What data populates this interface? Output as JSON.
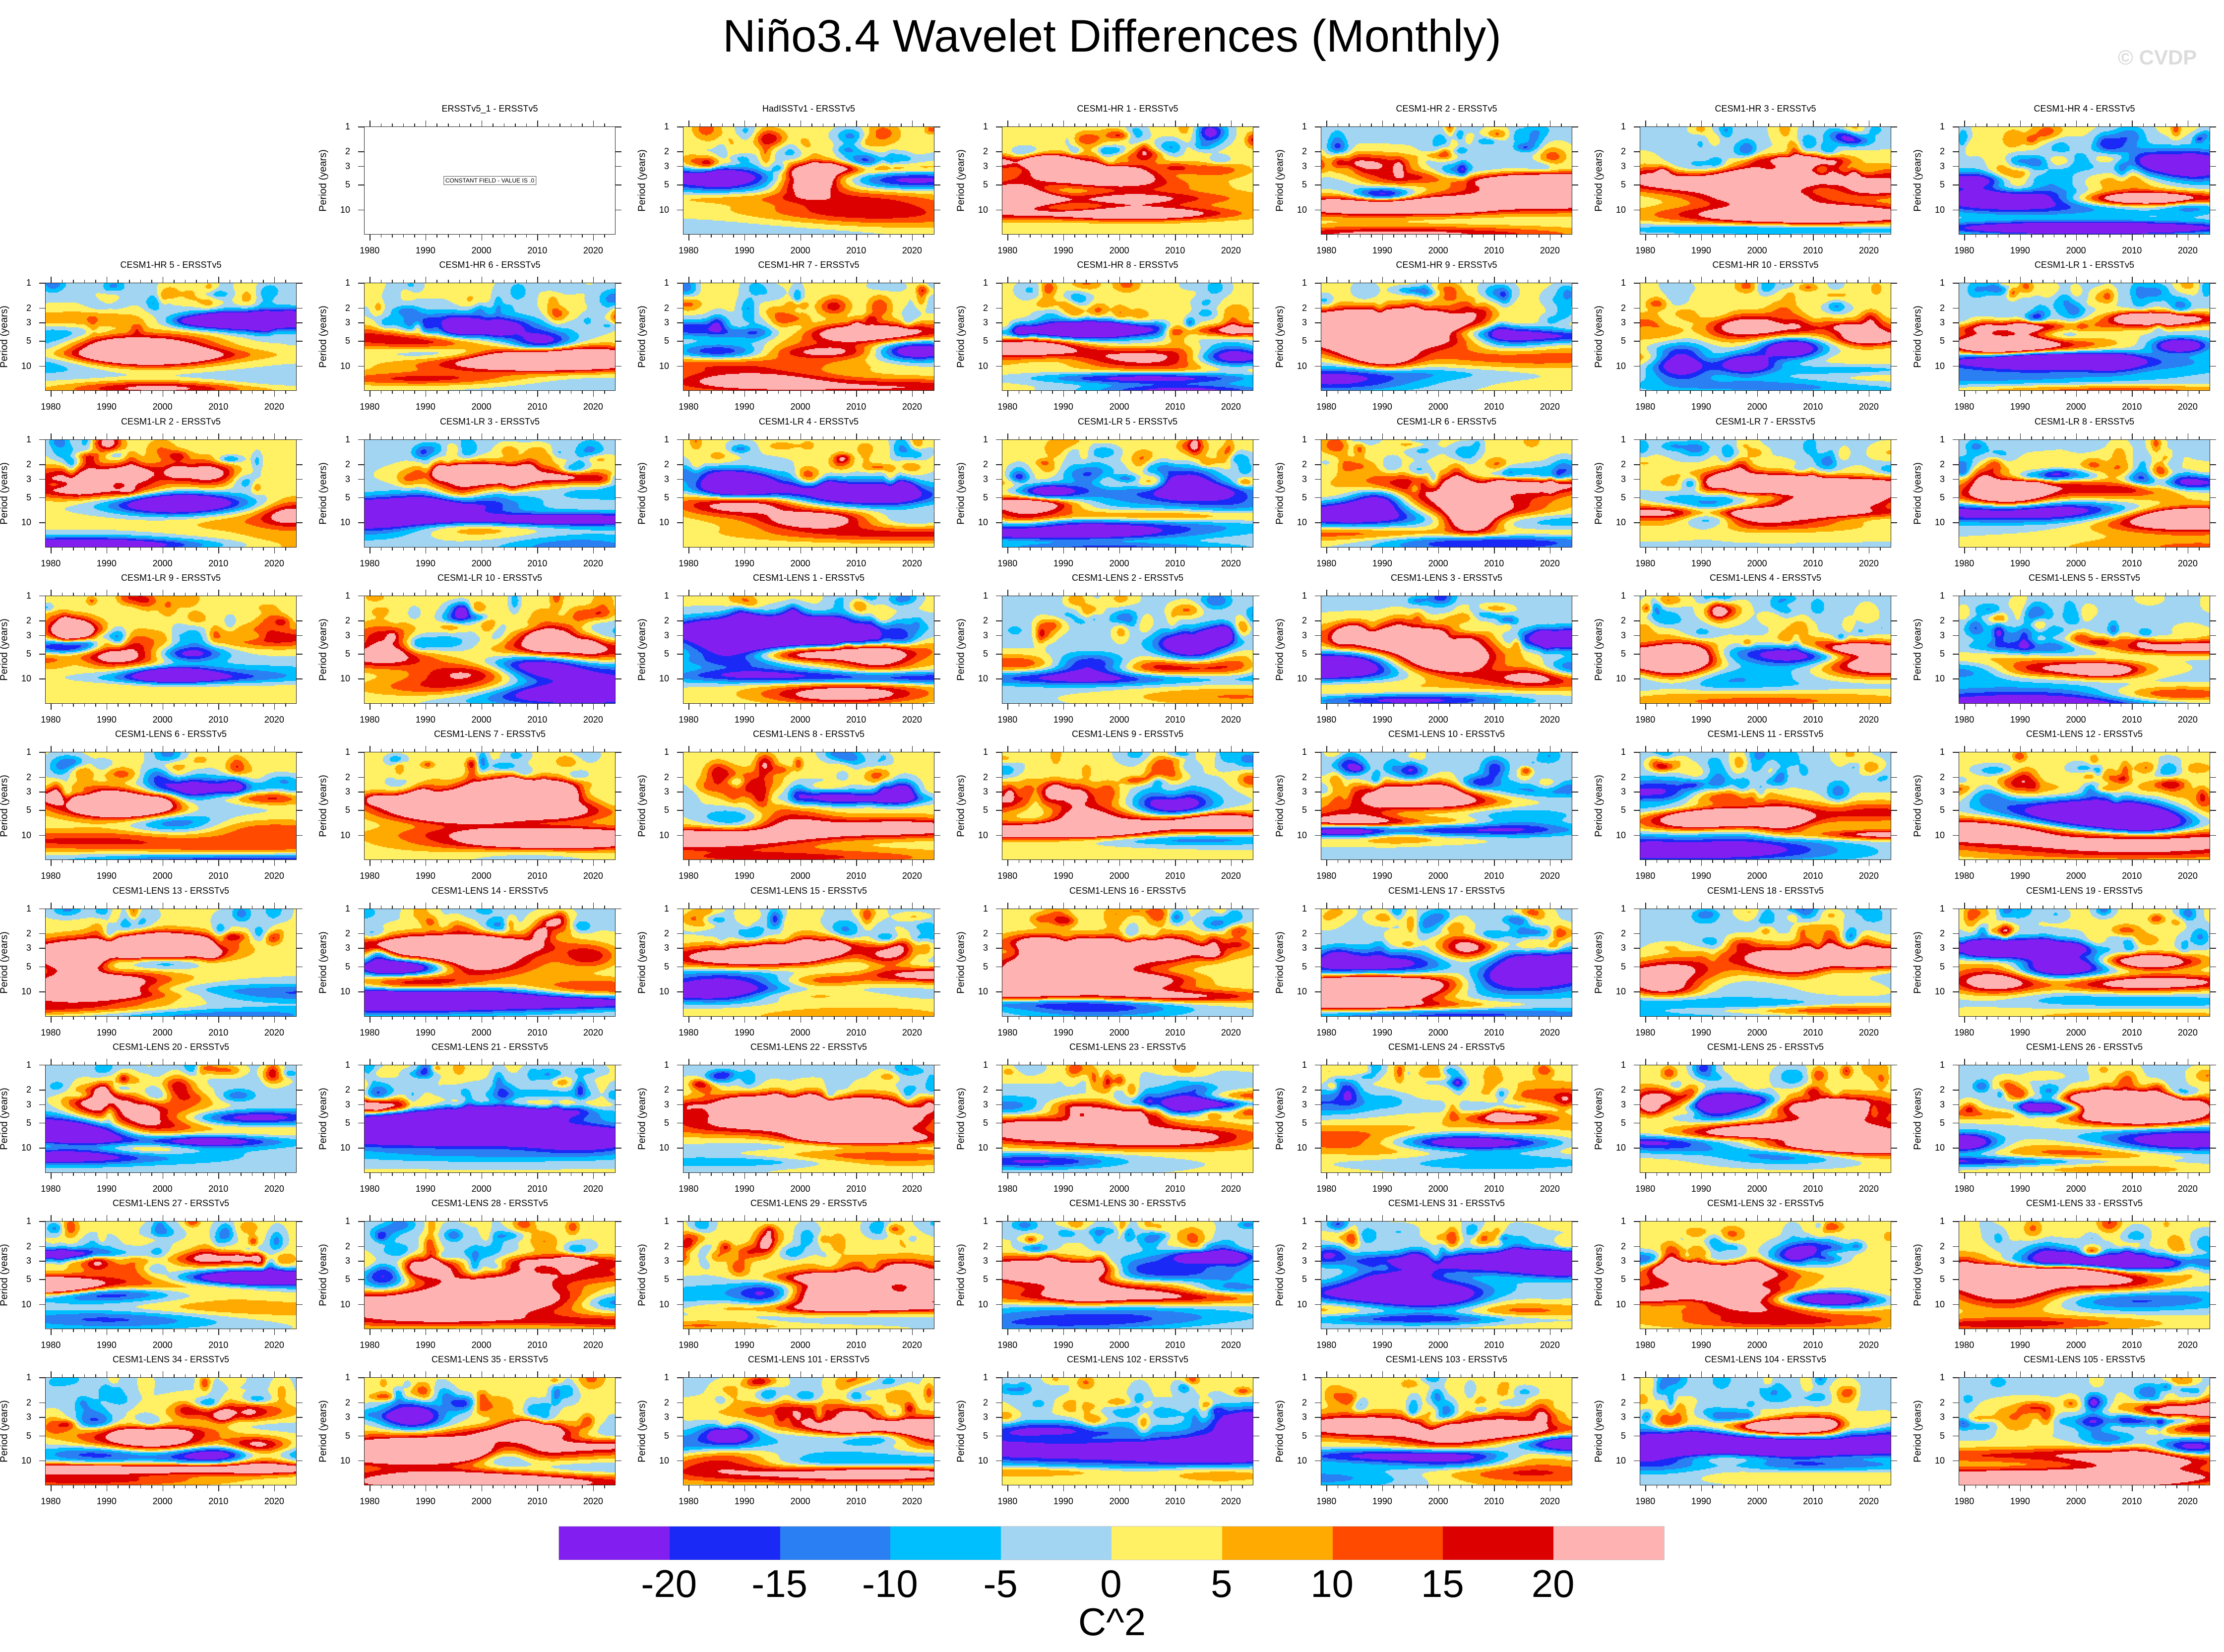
{
  "chart_data": {
    "type": "heatmap",
    "title": "Niño3.4 Wavelet Differences (Monthly)",
    "xlabel": "",
    "ylabel": "Period (years)",
    "xlim": [
      1979,
      2024
    ],
    "ylim": [
      1,
      20
    ],
    "y_scale": "log",
    "y_reversed": true,
    "x_ticks": [
      "1980",
      "1990",
      "2000",
      "2010",
      "2020"
    ],
    "y_ticks": [
      "1",
      "2",
      "3",
      "5",
      "10"
    ],
    "grid": false,
    "colorbar": {
      "placement": "bottom",
      "labels": [
        "-20",
        "-15",
        "-10",
        "-5",
        "0",
        "5",
        "10",
        "15",
        "20"
      ],
      "colors": [
        "#821ff0",
        "#1a29f5",
        "#2a7ff2",
        "#00bfff",
        "#a2d5f2",
        "#fff064",
        "#ffaa00",
        "#ff4a00",
        "#dc0000",
        "#ffb2b2"
      ],
      "units": "C^2"
    },
    "panels": [
      {
        "title": "ERSSTv5_1 - ERSSTv5",
        "note": "CONSTANT FIELD - VALUE IS .0"
      },
      {
        "title": "HadISSTv1 - ERSSTv5"
      },
      {
        "title": "CESM1-HR 1 - ERSSTv5"
      },
      {
        "title": "CESM1-HR 2 - ERSSTv5"
      },
      {
        "title": "CESM1-HR 3 - ERSSTv5"
      },
      {
        "title": "CESM1-HR 4 - ERSSTv5"
      },
      {
        "title": "CESM1-HR 5 - ERSSTv5"
      },
      {
        "title": "CESM1-HR 6 - ERSSTv5"
      },
      {
        "title": "CESM1-HR 7 - ERSSTv5"
      },
      {
        "title": "CESM1-HR 8 - ERSSTv5"
      },
      {
        "title": "CESM1-HR 9 - ERSSTv5"
      },
      {
        "title": "CESM1-HR 10 - ERSSTv5"
      },
      {
        "title": "CESM1-LR 1 - ERSSTv5"
      },
      {
        "title": "CESM1-LR 2 - ERSSTv5"
      },
      {
        "title": "CESM1-LR 3 - ERSSTv5"
      },
      {
        "title": "CESM1-LR 4 - ERSSTv5"
      },
      {
        "title": "CESM1-LR 5 - ERSSTv5"
      },
      {
        "title": "CESM1-LR 6 - ERSSTv5"
      },
      {
        "title": "CESM1-LR 7 - ERSSTv5"
      },
      {
        "title": "CESM1-LR 8 - ERSSTv5"
      },
      {
        "title": "CESM1-LR 9 - ERSSTv5"
      },
      {
        "title": "CESM1-LR 10 - ERSSTv5"
      },
      {
        "title": "CESM1-LENS 1 - ERSSTv5"
      },
      {
        "title": "CESM1-LENS 2 - ERSSTv5"
      },
      {
        "title": "CESM1-LENS 3 - ERSSTv5"
      },
      {
        "title": "CESM1-LENS 4 - ERSSTv5"
      },
      {
        "title": "CESM1-LENS 5 - ERSSTv5"
      },
      {
        "title": "CESM1-LENS 6 - ERSSTv5"
      },
      {
        "title": "CESM1-LENS 7 - ERSSTv5"
      },
      {
        "title": "CESM1-LENS 8 - ERSSTv5"
      },
      {
        "title": "CESM1-LENS 9 - ERSSTv5"
      },
      {
        "title": "CESM1-LENS 10 - ERSSTv5"
      },
      {
        "title": "CESM1-LENS 11 - ERSSTv5"
      },
      {
        "title": "CESM1-LENS 12 - ERSSTv5"
      },
      {
        "title": "CESM1-LENS 13 - ERSSTv5"
      },
      {
        "title": "CESM1-LENS 14 - ERSSTv5"
      },
      {
        "title": "CESM1-LENS 15 - ERSSTv5"
      },
      {
        "title": "CESM1-LENS 16 - ERSSTv5"
      },
      {
        "title": "CESM1-LENS 17 - ERSSTv5"
      },
      {
        "title": "CESM1-LENS 18 - ERSSTv5"
      },
      {
        "title": "CESM1-LENS 19 - ERSSTv5"
      },
      {
        "title": "CESM1-LENS 20 - ERSSTv5"
      },
      {
        "title": "CESM1-LENS 21 - ERSSTv5"
      },
      {
        "title": "CESM1-LENS 22 - ERSSTv5"
      },
      {
        "title": "CESM1-LENS 23 - ERSSTv5"
      },
      {
        "title": "CESM1-LENS 24 - ERSSTv5"
      },
      {
        "title": "CESM1-LENS 25 - ERSSTv5"
      },
      {
        "title": "CESM1-LENS 26 - ERSSTv5"
      },
      {
        "title": "CESM1-LENS 27 - ERSSTv5"
      },
      {
        "title": "CESM1-LENS 28 - ERSSTv5"
      },
      {
        "title": "CESM1-LENS 29 - ERSSTv5"
      },
      {
        "title": "CESM1-LENS 30 - ERSSTv5"
      },
      {
        "title": "CESM1-LENS 31 - ERSSTv5"
      },
      {
        "title": "CESM1-LENS 32 - ERSSTv5"
      },
      {
        "title": "CESM1-LENS 33 - ERSSTv5"
      },
      {
        "title": "CESM1-LENS 34 - ERSSTv5"
      },
      {
        "title": "CESM1-LENS 35 - ERSSTv5"
      },
      {
        "title": "CESM1-LENS 101 - ERSSTv5"
      },
      {
        "title": "CESM1-LENS 102 - ERSSTv5"
      },
      {
        "title": "CESM1-LENS 103 - ERSSTv5"
      },
      {
        "title": "CESM1-LENS 104 - ERSSTv5"
      },
      {
        "title": "CESM1-LENS 105 - ERSSTv5"
      }
    ]
  },
  "watermark": "© CVDP"
}
